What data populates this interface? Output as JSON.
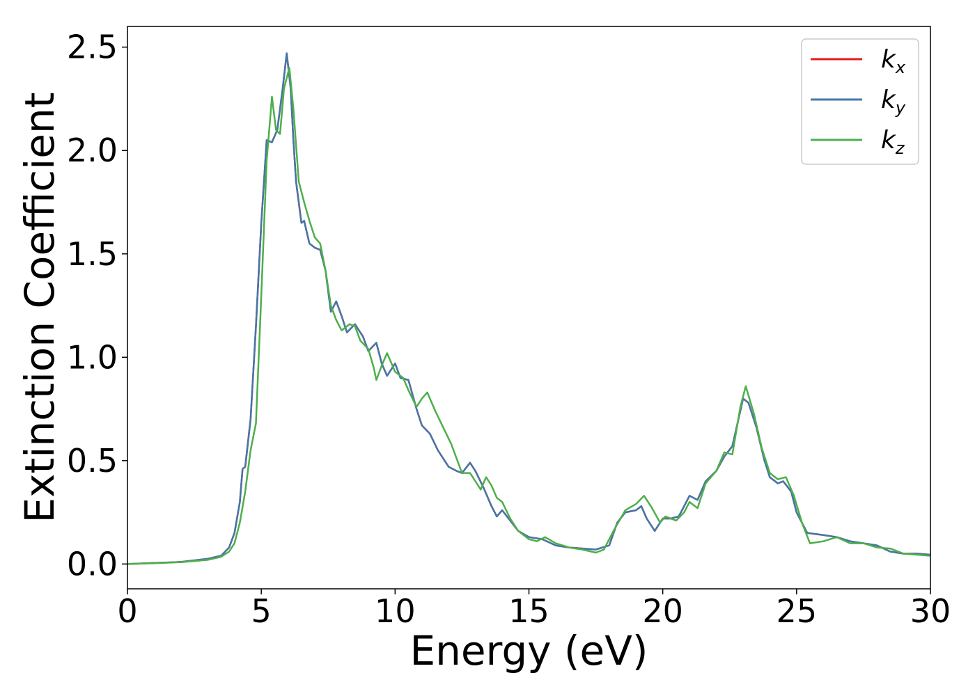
{
  "chart_data": {
    "type": "line",
    "title": "",
    "xlabel": "Energy (eV)",
    "ylabel": "Extinction Coefficient",
    "xlim": [
      0,
      30
    ],
    "ylim": [
      -0.12,
      2.6
    ],
    "xticks": [
      0,
      5,
      10,
      15,
      20,
      25,
      30
    ],
    "xtick_labels": [
      "0",
      "5",
      "10",
      "15",
      "20",
      "25",
      "30"
    ],
    "yticks": [
      0.0,
      0.5,
      1.0,
      1.5,
      2.0,
      2.5
    ],
    "ytick_labels": [
      "0.0",
      "0.5",
      "1.0",
      "1.5",
      "2.0",
      "2.5"
    ],
    "grid": false,
    "legend_position": "top-right",
    "series": [
      {
        "name": "k_x",
        "legend_base": "k",
        "legend_sub": "x",
        "color": "#e41a1c",
        "points": [
          [
            0,
            0
          ],
          [
            1,
            0.005
          ],
          [
            2,
            0.01
          ],
          [
            3,
            0.025
          ],
          [
            3.5,
            0.04
          ],
          [
            3.8,
            0.08
          ],
          [
            4.0,
            0.15
          ],
          [
            4.2,
            0.3
          ],
          [
            4.3,
            0.46
          ],
          [
            4.4,
            0.47
          ],
          [
            4.6,
            0.7
          ],
          [
            4.8,
            1.15
          ],
          [
            5.0,
            1.65
          ],
          [
            5.2,
            2.05
          ],
          [
            5.4,
            2.04
          ],
          [
            5.6,
            2.1
          ],
          [
            5.8,
            2.3
          ],
          [
            5.95,
            2.47
          ],
          [
            6.1,
            2.3
          ],
          [
            6.2,
            2.05
          ],
          [
            6.3,
            1.85
          ],
          [
            6.5,
            1.65
          ],
          [
            6.6,
            1.66
          ],
          [
            6.8,
            1.55
          ],
          [
            7.0,
            1.53
          ],
          [
            7.2,
            1.52
          ],
          [
            7.4,
            1.42
          ],
          [
            7.6,
            1.22
          ],
          [
            7.8,
            1.27
          ],
          [
            8.0,
            1.2
          ],
          [
            8.2,
            1.12
          ],
          [
            8.5,
            1.16
          ],
          [
            8.8,
            1.1
          ],
          [
            9.0,
            1.03
          ],
          [
            9.3,
            1.07
          ],
          [
            9.5,
            0.97
          ],
          [
            9.7,
            0.91
          ],
          [
            10.0,
            0.97
          ],
          [
            10.2,
            0.9
          ],
          [
            10.5,
            0.89
          ],
          [
            10.8,
            0.75
          ],
          [
            11.0,
            0.67
          ],
          [
            11.3,
            0.63
          ],
          [
            11.6,
            0.55
          ],
          [
            12.0,
            0.47
          ],
          [
            12.3,
            0.45
          ],
          [
            12.5,
            0.44
          ],
          [
            12.8,
            0.49
          ],
          [
            13.0,
            0.45
          ],
          [
            13.3,
            0.37
          ],
          [
            13.6,
            0.28
          ],
          [
            13.8,
            0.23
          ],
          [
            14.0,
            0.26
          ],
          [
            14.3,
            0.21
          ],
          [
            14.6,
            0.16
          ],
          [
            15.0,
            0.13
          ],
          [
            15.5,
            0.12
          ],
          [
            16.0,
            0.09
          ],
          [
            16.5,
            0.08
          ],
          [
            17.0,
            0.075
          ],
          [
            17.5,
            0.07
          ],
          [
            18.0,
            0.09
          ],
          [
            18.3,
            0.2
          ],
          [
            18.6,
            0.25
          ],
          [
            19.0,
            0.26
          ],
          [
            19.2,
            0.28
          ],
          [
            19.4,
            0.22
          ],
          [
            19.7,
            0.16
          ],
          [
            20.0,
            0.22
          ],
          [
            20.3,
            0.22
          ],
          [
            20.6,
            0.23
          ],
          [
            21.0,
            0.33
          ],
          [
            21.3,
            0.31
          ],
          [
            21.6,
            0.4
          ],
          [
            22.0,
            0.45
          ],
          [
            22.3,
            0.52
          ],
          [
            22.6,
            0.57
          ],
          [
            23.0,
            0.8
          ],
          [
            23.2,
            0.78
          ],
          [
            23.5,
            0.66
          ],
          [
            23.8,
            0.5
          ],
          [
            24.0,
            0.42
          ],
          [
            24.3,
            0.39
          ],
          [
            24.5,
            0.4
          ],
          [
            24.8,
            0.35
          ],
          [
            25.0,
            0.25
          ],
          [
            25.4,
            0.15
          ],
          [
            26.0,
            0.14
          ],
          [
            26.5,
            0.13
          ],
          [
            27.0,
            0.11
          ],
          [
            27.5,
            0.1
          ],
          [
            28.0,
            0.09
          ],
          [
            28.5,
            0.06
          ],
          [
            29.0,
            0.05
          ],
          [
            29.5,
            0.05
          ],
          [
            30.0,
            0.045
          ]
        ]
      },
      {
        "name": "k_y",
        "legend_base": "k",
        "legend_sub": "y",
        "color": "#4477aa",
        "points": [
          [
            0,
            0
          ],
          [
            1,
            0.005
          ],
          [
            2,
            0.01
          ],
          [
            3,
            0.025
          ],
          [
            3.5,
            0.04
          ],
          [
            3.8,
            0.08
          ],
          [
            4.0,
            0.15
          ],
          [
            4.2,
            0.3
          ],
          [
            4.3,
            0.46
          ],
          [
            4.4,
            0.47
          ],
          [
            4.6,
            0.7
          ],
          [
            4.8,
            1.15
          ],
          [
            5.0,
            1.65
          ],
          [
            5.2,
            2.05
          ],
          [
            5.4,
            2.04
          ],
          [
            5.6,
            2.1
          ],
          [
            5.8,
            2.3
          ],
          [
            5.95,
            2.47
          ],
          [
            6.1,
            2.3
          ],
          [
            6.2,
            2.05
          ],
          [
            6.3,
            1.85
          ],
          [
            6.5,
            1.65
          ],
          [
            6.6,
            1.66
          ],
          [
            6.8,
            1.55
          ],
          [
            7.0,
            1.53
          ],
          [
            7.2,
            1.52
          ],
          [
            7.4,
            1.42
          ],
          [
            7.6,
            1.22
          ],
          [
            7.8,
            1.27
          ],
          [
            8.0,
            1.2
          ],
          [
            8.2,
            1.12
          ],
          [
            8.5,
            1.16
          ],
          [
            8.8,
            1.1
          ],
          [
            9.0,
            1.03
          ],
          [
            9.3,
            1.07
          ],
          [
            9.5,
            0.97
          ],
          [
            9.7,
            0.91
          ],
          [
            10.0,
            0.97
          ],
          [
            10.2,
            0.9
          ],
          [
            10.5,
            0.89
          ],
          [
            10.8,
            0.75
          ],
          [
            11.0,
            0.67
          ],
          [
            11.3,
            0.63
          ],
          [
            11.6,
            0.55
          ],
          [
            12.0,
            0.47
          ],
          [
            12.3,
            0.45
          ],
          [
            12.5,
            0.44
          ],
          [
            12.8,
            0.49
          ],
          [
            13.0,
            0.45
          ],
          [
            13.3,
            0.37
          ],
          [
            13.6,
            0.28
          ],
          [
            13.8,
            0.23
          ],
          [
            14.0,
            0.26
          ],
          [
            14.3,
            0.21
          ],
          [
            14.6,
            0.16
          ],
          [
            15.0,
            0.13
          ],
          [
            15.5,
            0.12
          ],
          [
            16.0,
            0.09
          ],
          [
            16.5,
            0.08
          ],
          [
            17.0,
            0.075
          ],
          [
            17.5,
            0.07
          ],
          [
            18.0,
            0.09
          ],
          [
            18.3,
            0.2
          ],
          [
            18.6,
            0.25
          ],
          [
            19.0,
            0.26
          ],
          [
            19.2,
            0.28
          ],
          [
            19.4,
            0.22
          ],
          [
            19.7,
            0.16
          ],
          [
            20.0,
            0.22
          ],
          [
            20.3,
            0.22
          ],
          [
            20.6,
            0.23
          ],
          [
            21.0,
            0.33
          ],
          [
            21.3,
            0.31
          ],
          [
            21.6,
            0.4
          ],
          [
            22.0,
            0.45
          ],
          [
            22.3,
            0.52
          ],
          [
            22.6,
            0.57
          ],
          [
            23.0,
            0.8
          ],
          [
            23.2,
            0.78
          ],
          [
            23.5,
            0.66
          ],
          [
            23.8,
            0.5
          ],
          [
            24.0,
            0.42
          ],
          [
            24.3,
            0.39
          ],
          [
            24.5,
            0.4
          ],
          [
            24.8,
            0.35
          ],
          [
            25.0,
            0.25
          ],
          [
            25.4,
            0.15
          ],
          [
            26.0,
            0.14
          ],
          [
            26.5,
            0.13
          ],
          [
            27.0,
            0.11
          ],
          [
            27.5,
            0.1
          ],
          [
            28.0,
            0.09
          ],
          [
            28.5,
            0.06
          ],
          [
            29.0,
            0.05
          ],
          [
            29.5,
            0.05
          ],
          [
            30.0,
            0.045
          ]
        ]
      },
      {
        "name": "k_z",
        "legend_base": "k",
        "legend_sub": "z",
        "color": "#4daf4a",
        "points": [
          [
            0,
            0
          ],
          [
            1,
            0.004
          ],
          [
            2,
            0.009
          ],
          [
            3,
            0.02
          ],
          [
            3.5,
            0.035
          ],
          [
            3.8,
            0.06
          ],
          [
            4.0,
            0.1
          ],
          [
            4.2,
            0.2
          ],
          [
            4.4,
            0.35
          ],
          [
            4.6,
            0.55
          ],
          [
            4.8,
            0.68
          ],
          [
            5.0,
            1.3
          ],
          [
            5.2,
            1.95
          ],
          [
            5.4,
            2.26
          ],
          [
            5.55,
            2.1
          ],
          [
            5.7,
            2.08
          ],
          [
            5.85,
            2.3
          ],
          [
            6.05,
            2.4
          ],
          [
            6.2,
            2.2
          ],
          [
            6.4,
            1.85
          ],
          [
            6.6,
            1.75
          ],
          [
            6.8,
            1.66
          ],
          [
            7.0,
            1.58
          ],
          [
            7.2,
            1.55
          ],
          [
            7.4,
            1.42
          ],
          [
            7.6,
            1.25
          ],
          [
            7.8,
            1.18
          ],
          [
            8.0,
            1.13
          ],
          [
            8.3,
            1.16
          ],
          [
            8.5,
            1.15
          ],
          [
            8.7,
            1.08
          ],
          [
            9.0,
            1.04
          ],
          [
            9.2,
            0.95
          ],
          [
            9.3,
            0.89
          ],
          [
            9.5,
            0.96
          ],
          [
            9.7,
            1.02
          ],
          [
            10.0,
            0.93
          ],
          [
            10.3,
            0.9
          ],
          [
            10.5,
            0.84
          ],
          [
            10.8,
            0.76
          ],
          [
            11.0,
            0.8
          ],
          [
            11.2,
            0.83
          ],
          [
            11.5,
            0.74
          ],
          [
            11.8,
            0.66
          ],
          [
            12.1,
            0.58
          ],
          [
            12.3,
            0.51
          ],
          [
            12.5,
            0.44
          ],
          [
            12.8,
            0.44
          ],
          [
            13.0,
            0.4
          ],
          [
            13.2,
            0.36
          ],
          [
            13.4,
            0.42
          ],
          [
            13.6,
            0.38
          ],
          [
            13.8,
            0.32
          ],
          [
            14.0,
            0.3
          ],
          [
            14.3,
            0.22
          ],
          [
            14.6,
            0.16
          ],
          [
            15.0,
            0.12
          ],
          [
            15.3,
            0.11
          ],
          [
            15.6,
            0.13
          ],
          [
            16.0,
            0.1
          ],
          [
            16.5,
            0.08
          ],
          [
            17.0,
            0.07
          ],
          [
            17.5,
            0.055
          ],
          [
            17.8,
            0.07
          ],
          [
            18.2,
            0.17
          ],
          [
            18.6,
            0.26
          ],
          [
            19.0,
            0.29
          ],
          [
            19.3,
            0.33
          ],
          [
            19.6,
            0.27
          ],
          [
            19.9,
            0.2
          ],
          [
            20.1,
            0.23
          ],
          [
            20.5,
            0.21
          ],
          [
            20.8,
            0.25
          ],
          [
            21.0,
            0.3
          ],
          [
            21.3,
            0.27
          ],
          [
            21.6,
            0.39
          ],
          [
            22.0,
            0.45
          ],
          [
            22.3,
            0.54
          ],
          [
            22.6,
            0.53
          ],
          [
            22.9,
            0.76
          ],
          [
            23.1,
            0.86
          ],
          [
            23.4,
            0.73
          ],
          [
            23.7,
            0.56
          ],
          [
            24.0,
            0.44
          ],
          [
            24.3,
            0.41
          ],
          [
            24.6,
            0.42
          ],
          [
            24.9,
            0.33
          ],
          [
            25.2,
            0.2
          ],
          [
            25.5,
            0.1
          ],
          [
            26.0,
            0.11
          ],
          [
            26.5,
            0.13
          ],
          [
            27.0,
            0.1
          ],
          [
            27.5,
            0.1
          ],
          [
            28.0,
            0.08
          ],
          [
            28.5,
            0.075
          ],
          [
            29.0,
            0.05
          ],
          [
            29.5,
            0.045
          ],
          [
            30.0,
            0.04
          ]
        ]
      }
    ]
  }
}
